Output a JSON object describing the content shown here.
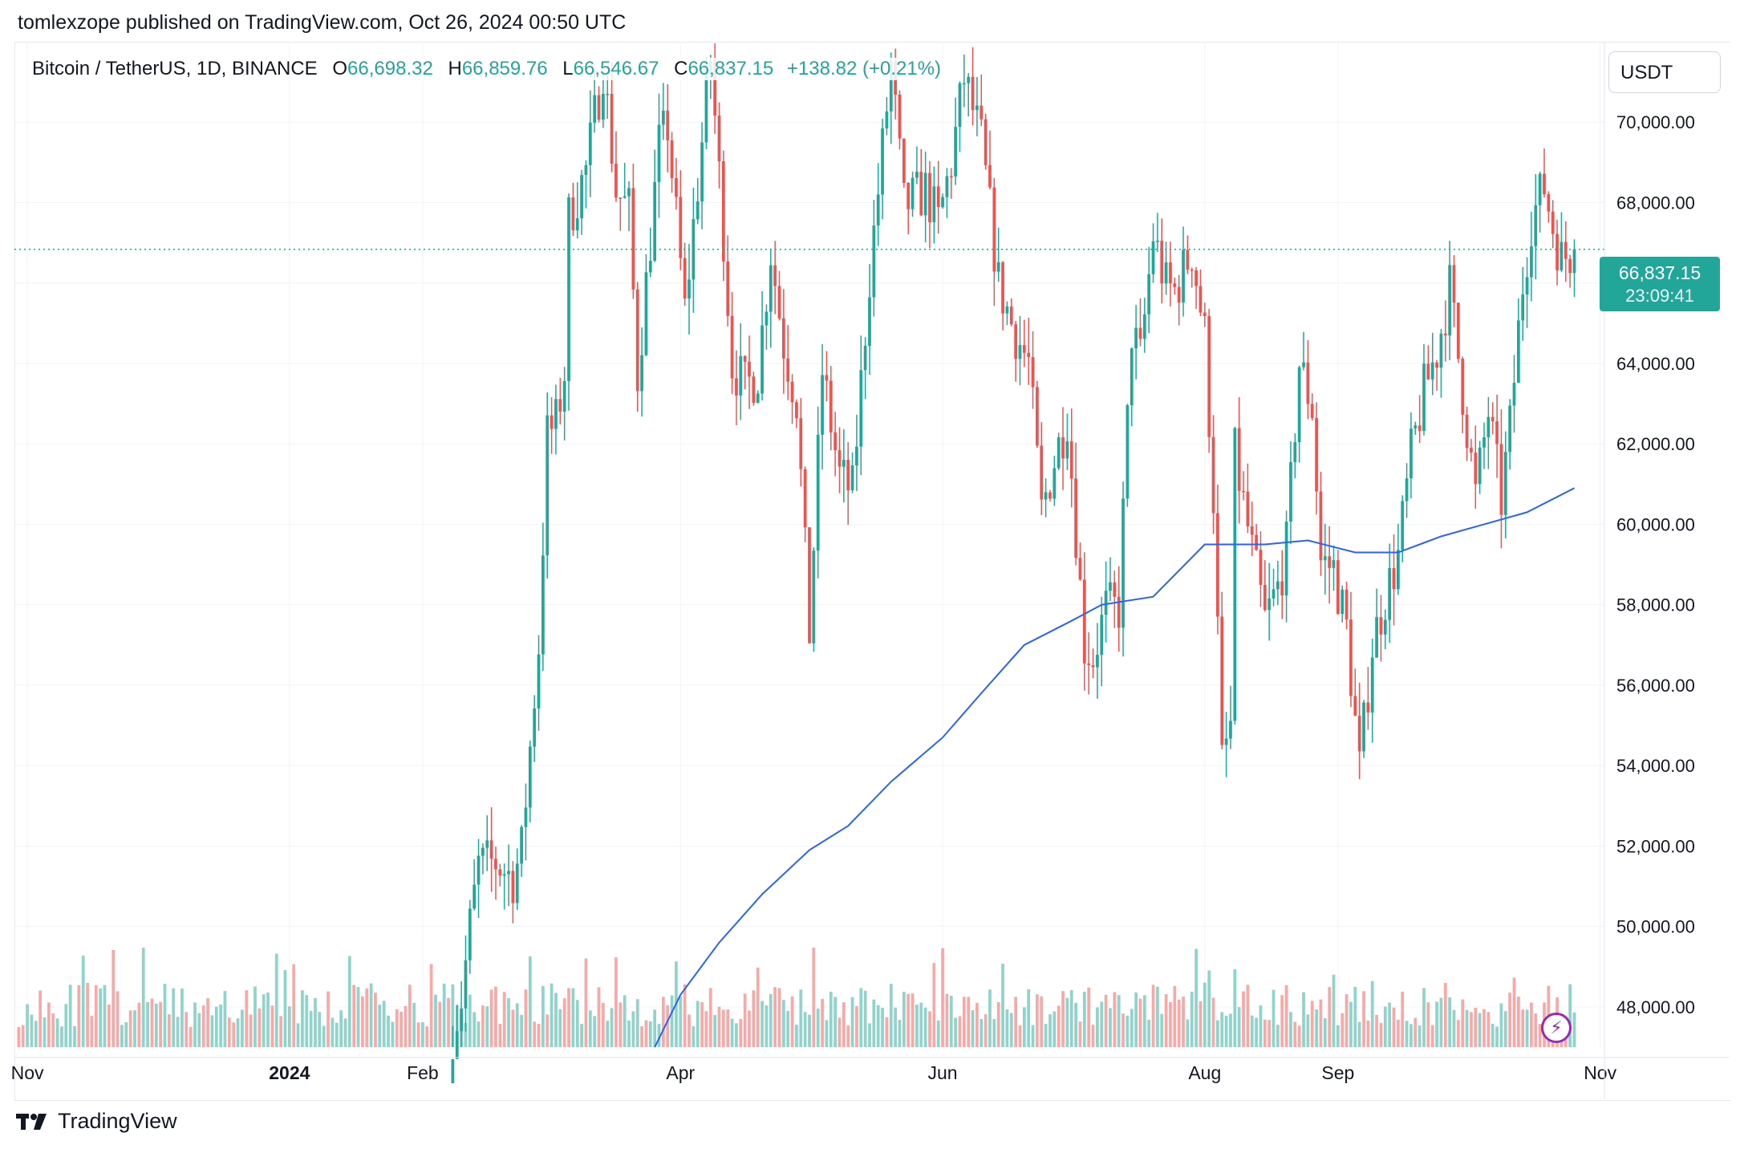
{
  "header": {
    "published_line": "tomlexzope published on TradingView.com, Oct 26, 2024 00:50 UTC"
  },
  "legend": {
    "symbol": "Bitcoin / TetherUS, 1D, BINANCE",
    "open_label": "O",
    "open_value": "66,698.32",
    "high_label": "H",
    "high_value": "66,859.76",
    "low_label": "L",
    "low_value": "66,546.67",
    "close_label": "C",
    "close_value": "66,837.15",
    "change": "+138.82 (+0.21%)"
  },
  "currency_button": "USDT",
  "price_tag": {
    "price": "66,837.15",
    "countdown": "23:09:41"
  },
  "footer": {
    "brand": "TradingView"
  },
  "colors": {
    "up": "#22a69a",
    "down": "#ef5350",
    "up_volume": "#8fd3cb",
    "down_volume": "#f7a9a7",
    "ma_line": "#2962ff",
    "price_line": "#22a69a",
    "grid": "#f0f3fa",
    "alert_icon": "#9c27b0"
  },
  "icons": [
    "tradingview-logo-icon",
    "lightning-alert-icon"
  ],
  "chart_data": {
    "type": "candlestick",
    "title": "Bitcoin / TetherUS, 1D, BINANCE",
    "ylim": [
      47000,
      72000
    ],
    "y_ticks": [
      48000,
      50000,
      52000,
      54000,
      56000,
      58000,
      60000,
      62000,
      64000,
      66000,
      68000,
      70000
    ],
    "y_tick_labels": [
      "48,000.00",
      "50,000.00",
      "52,000.00",
      "54,000.00",
      "56,000.00",
      "58,000.00",
      "60,000.00",
      "62,000.00",
      "64,000.00",
      "66,000.00",
      "68,000.00",
      "70,000.00"
    ],
    "x_ticks": [
      {
        "date": "2023-11-01",
        "label": "Nov",
        "bold": false
      },
      {
        "date": "2024-01-01",
        "label": "2024",
        "bold": true
      },
      {
        "date": "2024-02-01",
        "label": "Feb",
        "bold": false
      },
      {
        "date": "2024-04-01",
        "label": "Apr",
        "bold": false
      },
      {
        "date": "2024-06-01",
        "label": "Jun",
        "bold": false
      },
      {
        "date": "2024-08-01",
        "label": "Aug",
        "bold": false
      },
      {
        "date": "2024-09-01",
        "label": "Sep",
        "bold": false
      },
      {
        "date": "2024-11-01",
        "label": "Nov",
        "bold": false
      }
    ],
    "grid": true,
    "last_price": 66837.15,
    "price_anchors": [
      {
        "date": "2024-02-08",
        "close": 47400
      },
      {
        "date": "2024-02-10",
        "close": 48200
      },
      {
        "date": "2024-02-12",
        "close": 50000
      },
      {
        "date": "2024-02-14",
        "close": 51500
      },
      {
        "date": "2024-02-18",
        "close": 51600
      },
      {
        "date": "2024-02-22",
        "close": 51200
      },
      {
        "date": "2024-02-24",
        "close": 51900
      },
      {
        "date": "2024-02-28",
        "close": 57000
      },
      {
        "date": "2024-03-01",
        "close": 62200
      },
      {
        "date": "2024-03-03",
        "close": 62500
      },
      {
        "date": "2024-03-05",
        "close": 63800
      },
      {
        "date": "2024-03-06",
        "close": 67600
      },
      {
        "date": "2024-03-10",
        "close": 68800
      },
      {
        "date": "2024-03-14",
        "close": 71400
      },
      {
        "date": "2024-03-17",
        "close": 68300
      },
      {
        "date": "2024-03-20",
        "close": 67800
      },
      {
        "date": "2024-03-22",
        "close": 63700
      },
      {
        "date": "2024-03-25",
        "close": 67100
      },
      {
        "date": "2024-03-27",
        "close": 69400
      },
      {
        "date": "2024-03-29",
        "close": 69900
      },
      {
        "date": "2024-04-02",
        "close": 65300
      },
      {
        "date": "2024-04-08",
        "close": 71600
      },
      {
        "date": "2024-04-11",
        "close": 67200
      },
      {
        "date": "2024-04-13",
        "close": 64000
      },
      {
        "date": "2024-04-16",
        "close": 63400
      },
      {
        "date": "2024-04-19",
        "close": 63800
      },
      {
        "date": "2024-04-22",
        "close": 66800
      },
      {
        "date": "2024-04-25",
        "close": 64500
      },
      {
        "date": "2024-04-28",
        "close": 63100
      },
      {
        "date": "2024-05-01",
        "close": 57300
      },
      {
        "date": "2024-05-04",
        "close": 63800
      },
      {
        "date": "2024-05-08",
        "close": 61200
      },
      {
        "date": "2024-05-11",
        "close": 60800
      },
      {
        "date": "2024-05-15",
        "close": 66200
      },
      {
        "date": "2024-05-20",
        "close": 71400
      },
      {
        "date": "2024-05-23",
        "close": 67900
      },
      {
        "date": "2024-05-28",
        "close": 68300
      },
      {
        "date": "2024-05-31",
        "close": 67500
      },
      {
        "date": "2024-06-03",
        "close": 69000
      },
      {
        "date": "2024-06-06",
        "close": 71100
      },
      {
        "date": "2024-06-10",
        "close": 69500
      },
      {
        "date": "2024-06-14",
        "close": 66000
      },
      {
        "date": "2024-06-17",
        "close": 65000
      },
      {
        "date": "2024-06-21",
        "close": 64000
      },
      {
        "date": "2024-06-24",
        "close": 60300
      },
      {
        "date": "2024-06-27",
        "close": 61600
      },
      {
        "date": "2024-06-30",
        "close": 62700
      },
      {
        "date": "2024-07-04",
        "close": 57000
      },
      {
        "date": "2024-07-06",
        "close": 56700
      },
      {
        "date": "2024-07-09",
        "close": 57900
      },
      {
        "date": "2024-07-12",
        "close": 57900
      },
      {
        "date": "2024-07-15",
        "close": 64800
      },
      {
        "date": "2024-07-17",
        "close": 64100
      },
      {
        "date": "2024-07-20",
        "close": 67200
      },
      {
        "date": "2024-07-23",
        "close": 65900
      },
      {
        "date": "2024-07-25",
        "close": 65800
      },
      {
        "date": "2024-07-29",
        "close": 66800
      },
      {
        "date": "2024-08-01",
        "close": 64700
      },
      {
        "date": "2024-08-03",
        "close": 60700
      },
      {
        "date": "2024-08-05",
        "close": 54000
      },
      {
        "date": "2024-08-07",
        "close": 55000
      },
      {
        "date": "2024-08-08",
        "close": 61700
      },
      {
        "date": "2024-08-12",
        "close": 59300
      },
      {
        "date": "2024-08-15",
        "close": 57600
      },
      {
        "date": "2024-08-18",
        "close": 58400
      },
      {
        "date": "2024-08-20",
        "close": 59400
      },
      {
        "date": "2024-08-23",
        "close": 64000
      },
      {
        "date": "2024-08-26",
        "close": 62900
      },
      {
        "date": "2024-08-28",
        "close": 59100
      },
      {
        "date": "2024-08-31",
        "close": 58900
      },
      {
        "date": "2024-09-03",
        "close": 57400
      },
      {
        "date": "2024-09-06",
        "close": 53900
      },
      {
        "date": "2024-09-09",
        "close": 57000
      },
      {
        "date": "2024-09-12",
        "close": 58200
      },
      {
        "date": "2024-09-15",
        "close": 59200
      },
      {
        "date": "2024-09-18",
        "close": 61700
      },
      {
        "date": "2024-09-21",
        "close": 63300
      },
      {
        "date": "2024-09-24",
        "close": 64300
      },
      {
        "date": "2024-09-27",
        "close": 65900
      },
      {
        "date": "2024-09-30",
        "close": 63300
      },
      {
        "date": "2024-10-03",
        "close": 60700
      },
      {
        "date": "2024-10-06",
        "close": 62800
      },
      {
        "date": "2024-10-09",
        "close": 60600
      },
      {
        "date": "2024-10-11",
        "close": 62400
      },
      {
        "date": "2024-10-14",
        "close": 66000
      },
      {
        "date": "2024-10-16",
        "close": 67600
      },
      {
        "date": "2024-10-19",
        "close": 68400
      },
      {
        "date": "2024-10-21",
        "close": 67400
      },
      {
        "date": "2024-10-23",
        "close": 66600
      },
      {
        "date": "2024-10-26",
        "close": 66837
      }
    ],
    "moving_average": [
      {
        "date": "2024-03-26",
        "value": 47000
      },
      {
        "date": "2024-04-01",
        "value": 48300
      },
      {
        "date": "2024-04-10",
        "value": 49600
      },
      {
        "date": "2024-04-20",
        "value": 50800
      },
      {
        "date": "2024-05-01",
        "value": 51900
      },
      {
        "date": "2024-05-10",
        "value": 52500
      },
      {
        "date": "2024-05-20",
        "value": 53600
      },
      {
        "date": "2024-06-01",
        "value": 54700
      },
      {
        "date": "2024-06-10",
        "value": 55800
      },
      {
        "date": "2024-06-20",
        "value": 57000
      },
      {
        "date": "2024-07-01",
        "value": 57600
      },
      {
        "date": "2024-07-08",
        "value": 58000
      },
      {
        "date": "2024-07-20",
        "value": 58200
      },
      {
        "date": "2024-08-01",
        "value": 59500
      },
      {
        "date": "2024-08-15",
        "value": 59500
      },
      {
        "date": "2024-08-25",
        "value": 59600
      },
      {
        "date": "2024-09-05",
        "value": 59300
      },
      {
        "date": "2024-09-15",
        "value": 59300
      },
      {
        "date": "2024-09-25",
        "value": 59700
      },
      {
        "date": "2024-10-05",
        "value": 60000
      },
      {
        "date": "2024-10-15",
        "value": 60300
      },
      {
        "date": "2024-10-26",
        "value": 60900
      }
    ]
  }
}
